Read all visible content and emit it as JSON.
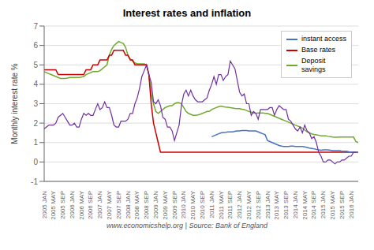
{
  "chart_data": {
    "type": "line",
    "title": "Interest rates and inflation",
    "ylabel": "Monthly interest rate %",
    "footer": "www.economicshelp.org | Source: Bank of England",
    "ylim": [
      -1,
      7
    ],
    "yticks": [
      -1,
      0,
      1,
      2,
      3,
      4,
      5,
      6,
      7
    ],
    "grid": true,
    "legend": "upper right",
    "categories": [
      "2005 JAN",
      null,
      null,
      null,
      "2005 MAY",
      null,
      null,
      null,
      "2005 SEP",
      null,
      null,
      null,
      "2006 JAN",
      null,
      null,
      null,
      "2006 MAY",
      null,
      null,
      null,
      "2006 SEP",
      null,
      null,
      null,
      "2007 JAN",
      null,
      null,
      null,
      "2007 MAY",
      null,
      null,
      null,
      "2007 SEP",
      null,
      null,
      null,
      "2008 JAN",
      null,
      null,
      null,
      "2008 MAY",
      null,
      null,
      null,
      "2008 SEP",
      null,
      null,
      null,
      "2009 JAN",
      null,
      null,
      null,
      "2009 MAY",
      null,
      null,
      null,
      "2009 SEP",
      null,
      null,
      null,
      "2010 JAN",
      null,
      null,
      null,
      "2010 MAY",
      null,
      null,
      null,
      "2010 SEP",
      null,
      null,
      null,
      "2011 JAN",
      null,
      null,
      null,
      "2011 MAY",
      null,
      null,
      null,
      "2011 SEP",
      null,
      null,
      null,
      "2012 JAN",
      null,
      null,
      null,
      "2012 MAY",
      null,
      null,
      null,
      "2012 SEP",
      null,
      null,
      null,
      "2013 JAN",
      null,
      null,
      null,
      "2013 MAY",
      null,
      null,
      null,
      "2013 SEP",
      null,
      null,
      null,
      "2014 JAN",
      null,
      null,
      null,
      "2014 MAY",
      null,
      null,
      null,
      "2014 SEP",
      null,
      null,
      null,
      "2015 JAN",
      null,
      null,
      null,
      "2015 MAY",
      null,
      null,
      null,
      "2015 SEP",
      null,
      null,
      null,
      "2016 JAN",
      null,
      null,
      null
    ],
    "series": [
      {
        "name": "Deposit\nsavings",
        "color": "#6eaa2c",
        "values": [
          4.65,
          4.6,
          4.55,
          4.5,
          4.45,
          4.4,
          4.35,
          4.3,
          4.3,
          4.3,
          4.32,
          4.35,
          4.35,
          4.35,
          4.35,
          4.35,
          4.37,
          4.4,
          4.5,
          4.55,
          4.6,
          4.65,
          4.65,
          4.65,
          4.7,
          4.8,
          4.9,
          5.0,
          5.5,
          5.8,
          6.0,
          6.1,
          6.2,
          6.15,
          6.1,
          5.9,
          5.5,
          5.3,
          5.2,
          5.1,
          5.05,
          5.05,
          5.05,
          5.05,
          5.0,
          4.5,
          3.5,
          3.0,
          2.6,
          2.5,
          2.6,
          2.7,
          2.8,
          2.85,
          2.9,
          2.9,
          3.0,
          3.05,
          3.05,
          3.0,
          2.8,
          2.6,
          2.5,
          2.45,
          2.4,
          2.4,
          2.42,
          2.45,
          2.5,
          2.55,
          2.6,
          2.6,
          2.7,
          2.75,
          2.8,
          2.85,
          2.88,
          2.85,
          2.83,
          2.82,
          2.8,
          2.78,
          2.76,
          2.75,
          2.75,
          2.72,
          2.7,
          2.65,
          2.6,
          2.56,
          2.52,
          2.5,
          2.52,
          2.52,
          2.52,
          2.5,
          2.5,
          2.45,
          2.4,
          2.35,
          2.3,
          2.25,
          2.2,
          2.15,
          2.1,
          2.05,
          2.0,
          1.95,
          1.9,
          1.85,
          1.8,
          1.75,
          1.65,
          1.55,
          1.5,
          1.45,
          1.42,
          1.4,
          1.38,
          1.35,
          1.35,
          1.35,
          1.32,
          1.3,
          1.28,
          1.27,
          1.27,
          1.28,
          1.28,
          1.28,
          1.28,
          1.28,
          1.28,
          1.28,
          1.05,
          1.0
        ]
      },
      {
        "name": "Base rates",
        "color": "#cc0000",
        "values": [
          4.75,
          4.75,
          4.75,
          4.75,
          4.75,
          4.75,
          4.5,
          4.5,
          4.5,
          4.5,
          4.5,
          4.5,
          4.5,
          4.5,
          4.5,
          4.5,
          4.5,
          4.5,
          4.75,
          4.75,
          4.75,
          5.0,
          5.0,
          5.0,
          5.25,
          5.25,
          5.25,
          5.25,
          5.5,
          5.5,
          5.75,
          5.75,
          5.75,
          5.75,
          5.75,
          5.5,
          5.5,
          5.25,
          5.25,
          5.0,
          5.0,
          5.0,
          5.0,
          5.0,
          5.0,
          4.5,
          3.0,
          2.0,
          1.5,
          1.0,
          0.5,
          0.5,
          0.5,
          0.5,
          0.5,
          0.5,
          0.5,
          0.5,
          0.5,
          0.5,
          0.5,
          0.5,
          0.5,
          0.5,
          0.5,
          0.5,
          0.5,
          0.5,
          0.5,
          0.5,
          0.5,
          0.5,
          0.5,
          0.5,
          0.5,
          0.5,
          0.5,
          0.5,
          0.5,
          0.5,
          0.5,
          0.5,
          0.5,
          0.5,
          0.5,
          0.5,
          0.5,
          0.5,
          0.5,
          0.5,
          0.5,
          0.5,
          0.5,
          0.5,
          0.5,
          0.5,
          0.5,
          0.5,
          0.5,
          0.5,
          0.5,
          0.5,
          0.5,
          0.5,
          0.5,
          0.5,
          0.5,
          0.5,
          0.5,
          0.5,
          0.5,
          0.5,
          0.5,
          0.5,
          0.5,
          0.5,
          0.5,
          0.5,
          0.5,
          0.5,
          0.5,
          0.5,
          0.5,
          0.5,
          0.5,
          0.5,
          0.5,
          0.5,
          0.5,
          0.5,
          0.5,
          0.5,
          0.5,
          0.5,
          0.5,
          0.5
        ]
      },
      {
        "name": "instant access",
        "color": "#4472c4",
        "values": [
          null,
          null,
          null,
          null,
          null,
          null,
          null,
          null,
          null,
          null,
          null,
          null,
          null,
          null,
          null,
          null,
          null,
          null,
          null,
          null,
          null,
          null,
          null,
          null,
          null,
          null,
          null,
          null,
          null,
          null,
          null,
          null,
          null,
          null,
          null,
          null,
          null,
          null,
          null,
          null,
          null,
          null,
          null,
          null,
          null,
          null,
          null,
          null,
          null,
          null,
          null,
          null,
          null,
          null,
          null,
          null,
          null,
          null,
          null,
          null,
          null,
          null,
          null,
          null,
          null,
          null,
          null,
          null,
          null,
          null,
          null,
          null,
          1.3,
          1.35,
          1.4,
          1.45,
          1.5,
          1.52,
          1.53,
          1.55,
          1.55,
          1.55,
          1.58,
          1.6,
          1.6,
          1.62,
          1.62,
          1.62,
          1.6,
          1.6,
          1.6,
          1.6,
          1.55,
          1.5,
          1.45,
          1.4,
          1.1,
          1.05,
          1.0,
          0.95,
          0.9,
          0.85,
          0.82,
          0.8,
          0.8,
          0.8,
          0.82,
          0.82,
          0.8,
          0.8,
          0.8,
          0.8,
          0.78,
          0.75,
          0.72,
          0.7,
          0.68,
          0.65,
          0.62,
          0.6,
          0.62,
          0.62,
          0.62,
          0.6,
          0.58,
          0.58,
          0.58,
          0.58,
          0.55,
          0.55,
          0.55,
          0.52,
          0.5,
          0.5,
          0.5,
          0.5
        ]
      },
      {
        "color": "#7030a0",
        "values": [
          1.7,
          1.8,
          1.9,
          1.9,
          1.9,
          2.0,
          2.3,
          2.4,
          2.5,
          2.3,
          2.1,
          1.9,
          1.9,
          2.0,
          1.8,
          1.8,
          2.2,
          2.5,
          2.4,
          2.5,
          2.4,
          2.4,
          2.7,
          3.0,
          2.7,
          2.8,
          3.1,
          2.8,
          2.8,
          2.4,
          1.9,
          1.8,
          1.8,
          2.1,
          2.1,
          2.1,
          2.2,
          2.5,
          2.5,
          3.0,
          3.3,
          3.8,
          4.4,
          4.7,
          5.0,
          4.5,
          4.1,
          3.1,
          3.0,
          3.2,
          2.9,
          2.3,
          2.2,
          1.8,
          1.8,
          1.6,
          1.1,
          1.5,
          1.9,
          2.9,
          3.5,
          3.7,
          3.4,
          3.7,
          3.4,
          3.2,
          3.1,
          3.1,
          3.1,
          3.2,
          3.3,
          3.7,
          4.0,
          4.4,
          4.0,
          4.5,
          4.5,
          4.2,
          4.4,
          4.5,
          5.2,
          5.0,
          4.8,
          4.2,
          3.6,
          3.4,
          3.5,
          3.0,
          3.0,
          2.4,
          2.6,
          2.5,
          2.2,
          2.7,
          2.7,
          2.7,
          2.7,
          2.8,
          2.8,
          2.4,
          2.7,
          2.9,
          2.8,
          2.7,
          2.7,
          2.2,
          2.1,
          1.9,
          1.7,
          1.6,
          1.8,
          1.5,
          1.9,
          1.6,
          1.5,
          1.2,
          1.3,
          1.0,
          0.5,
          0.3,
          0.0,
          0.0,
          0.1,
          0.1,
          0.0,
          -0.1,
          0.0,
          0.0,
          0.1,
          0.1,
          0.2,
          0.3,
          0.3,
          0.5,
          0.5,
          null
        ]
      }
    ]
  }
}
